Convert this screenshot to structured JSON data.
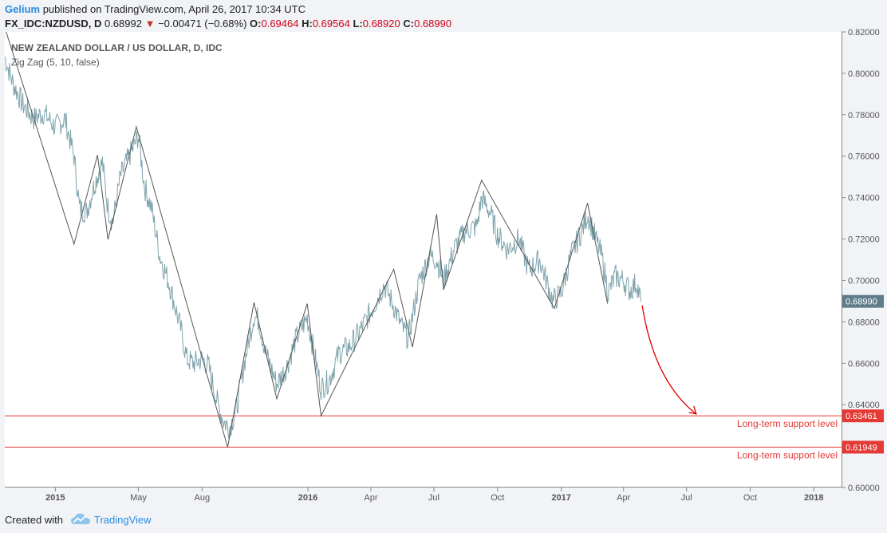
{
  "header": {
    "publisher": "Gelium",
    "published_text": "published on TradingView.com, April 26, 2017 10:34 UTC",
    "symbol": "FX_IDC:NZDUSD, D",
    "last": "0.68992",
    "change_arrow": "▼",
    "change": "−0.00471 (−0.68%)",
    "o_label": "O:",
    "o_value": "0.69464",
    "h_label": "H:",
    "h_value": "0.69564",
    "l_label": "L:",
    "l_value": "0.68920",
    "c_label": "C:",
    "c_value": "0.68990"
  },
  "footer": {
    "created_with": "Created with",
    "brand": "TradingView",
    "logo_icon": "tradingview-cloud-icon"
  },
  "chart_data": {
    "type": "line",
    "title": "NEW ZEALAND DOLLAR / US DOLLAR, D, IDC",
    "subtitle": "Zig Zag (5, 10, false)",
    "x_range": [
      "2014-10-20",
      "2018-02-10"
    ],
    "ylim": [
      0.6,
      0.82
    ],
    "y_ticks": [
      "0.82000",
      "0.80000",
      "0.78000",
      "0.76000",
      "0.74000",
      "0.72000",
      "0.70000",
      "0.68000",
      "0.66000",
      "0.64000",
      "0.60000"
    ],
    "x_ticks": [
      {
        "label": "2015",
        "date": "2015-01-01",
        "bold": true
      },
      {
        "label": "May",
        "date": "2015-05-01",
        "bold": false
      },
      {
        "label": "Aug",
        "date": "2015-08-01",
        "bold": false
      },
      {
        "label": "2016",
        "date": "2016-01-01",
        "bold": true
      },
      {
        "label": "Apr",
        "date": "2016-04-01",
        "bold": false
      },
      {
        "label": "Jul",
        "date": "2016-07-01",
        "bold": false
      },
      {
        "label": "Oct",
        "date": "2016-10-01",
        "bold": false
      },
      {
        "label": "2017",
        "date": "2017-01-01",
        "bold": true
      },
      {
        "label": "Apr",
        "date": "2017-04-01",
        "bold": false
      },
      {
        "label": "Jul",
        "date": "2017-07-01",
        "bold": false
      },
      {
        "label": "Oct",
        "date": "2017-10-01",
        "bold": false
      },
      {
        "label": "2018",
        "date": "2018-01-01",
        "bold": true
      }
    ],
    "price_series": {
      "color": "#7fa4ad",
      "points": [
        [
          "2014-10-20",
          0.808
        ],
        [
          "2014-11-01",
          0.795
        ],
        [
          "2014-11-15",
          0.785
        ],
        [
          "2014-12-01",
          0.778
        ],
        [
          "2014-12-15",
          0.781
        ],
        [
          "2015-01-01",
          0.774
        ],
        [
          "2015-01-15",
          0.778
        ],
        [
          "2015-01-28",
          0.76
        ],
        [
          "2015-02-05",
          0.735
        ],
        [
          "2015-02-15",
          0.733
        ],
        [
          "2015-02-28",
          0.748
        ],
        [
          "2015-03-10",
          0.757
        ],
        [
          "2015-03-18",
          0.735
        ],
        [
          "2015-03-25",
          0.728
        ],
        [
          "2015-04-05",
          0.75
        ],
        [
          "2015-04-15",
          0.758
        ],
        [
          "2015-04-25",
          0.765
        ],
        [
          "2015-05-01",
          0.77
        ],
        [
          "2015-05-10",
          0.745
        ],
        [
          "2015-05-20",
          0.735
        ],
        [
          "2015-06-01",
          0.712
        ],
        [
          "2015-06-15",
          0.698
        ],
        [
          "2015-07-01",
          0.677
        ],
        [
          "2015-07-10",
          0.662
        ],
        [
          "2015-07-20",
          0.66
        ],
        [
          "2015-08-01",
          0.662
        ],
        [
          "2015-08-10",
          0.659
        ],
        [
          "2015-08-24",
          0.64
        ],
        [
          "2015-09-01",
          0.632
        ],
        [
          "2015-09-10",
          0.629
        ],
        [
          "2015-09-20",
          0.638
        ],
        [
          "2015-10-01",
          0.66
        ],
        [
          "2015-10-15",
          0.683
        ],
        [
          "2015-10-22",
          0.681
        ],
        [
          "2015-11-01",
          0.665
        ],
        [
          "2015-11-17",
          0.65
        ],
        [
          "2015-12-01",
          0.658
        ],
        [
          "2015-12-15",
          0.672
        ],
        [
          "2015-12-31",
          0.682
        ],
        [
          "2016-01-10",
          0.665
        ],
        [
          "2016-01-20",
          0.648
        ],
        [
          "2016-02-01",
          0.652
        ],
        [
          "2016-02-15",
          0.665
        ],
        [
          "2016-03-01",
          0.668
        ],
        [
          "2016-03-15",
          0.675
        ],
        [
          "2016-04-01",
          0.685
        ],
        [
          "2016-04-20",
          0.698
        ],
        [
          "2016-05-01",
          0.69
        ],
        [
          "2016-05-15",
          0.678
        ],
        [
          "2016-05-25",
          0.672
        ],
        [
          "2016-06-10",
          0.7
        ],
        [
          "2016-06-25",
          0.712
        ],
        [
          "2016-07-05",
          0.71
        ],
        [
          "2016-07-15",
          0.7
        ],
        [
          "2016-07-30",
          0.715
        ],
        [
          "2016-08-15",
          0.724
        ],
        [
          "2016-09-01",
          0.726
        ],
        [
          "2016-09-08",
          0.74
        ],
        [
          "2016-09-20",
          0.733
        ],
        [
          "2016-10-01",
          0.722
        ],
        [
          "2016-10-15",
          0.715
        ],
        [
          "2016-11-01",
          0.72
        ],
        [
          "2016-11-15",
          0.705
        ],
        [
          "2016-12-01",
          0.71
        ],
        [
          "2016-12-20",
          0.69
        ],
        [
          "2017-01-01",
          0.694
        ],
        [
          "2017-01-15",
          0.712
        ],
        [
          "2017-02-01",
          0.725
        ],
        [
          "2017-02-08",
          0.732
        ],
        [
          "2017-02-20",
          0.72
        ],
        [
          "2017-03-01",
          0.711
        ],
        [
          "2017-03-10",
          0.694
        ],
        [
          "2017-03-20",
          0.702
        ],
        [
          "2017-04-01",
          0.7
        ],
        [
          "2017-04-10",
          0.695
        ],
        [
          "2017-04-20",
          0.699
        ],
        [
          "2017-04-26",
          0.6899
        ]
      ]
    },
    "zigzag": {
      "color": "#555555",
      "points": [
        [
          "2014-10-20",
          0.822
        ],
        [
          "2015-01-28",
          0.7175
        ],
        [
          "2015-03-03",
          0.7606
        ],
        [
          "2015-03-18",
          0.7198
        ],
        [
          "2015-04-28",
          0.7742
        ],
        [
          "2015-09-07",
          0.6194
        ],
        [
          "2015-10-15",
          0.6894
        ],
        [
          "2015-11-17",
          0.6428
        ],
        [
          "2015-12-31",
          0.6888
        ],
        [
          "2016-01-20",
          0.6346
        ],
        [
          "2016-05-04",
          0.7054
        ],
        [
          "2016-05-31",
          0.6678
        ],
        [
          "2016-07-05",
          0.732
        ],
        [
          "2016-07-15",
          0.6955
        ],
        [
          "2016-09-08",
          0.7484
        ],
        [
          "2016-12-22",
          0.6865
        ],
        [
          "2017-02-08",
          0.7373
        ],
        [
          "2017-03-09",
          0.6888
        ]
      ]
    },
    "annotations": [
      {
        "type": "hline",
        "value": 0.63461,
        "label": "Long-term support level",
        "price_tag": "0.63461",
        "color": "#e53935"
      },
      {
        "type": "hline",
        "value": 0.61949,
        "label": "Long-term support level",
        "price_tag": "0.61949",
        "color": "#e53935"
      }
    ],
    "arrow": {
      "from": [
        "2017-04-28",
        0.688
      ],
      "to": [
        "2017-07-15",
        0.6355
      ],
      "color": "#e00000"
    },
    "last_price_tag": {
      "value": 0.6899,
      "label": "0.68990",
      "color": "#607d8b"
    }
  }
}
